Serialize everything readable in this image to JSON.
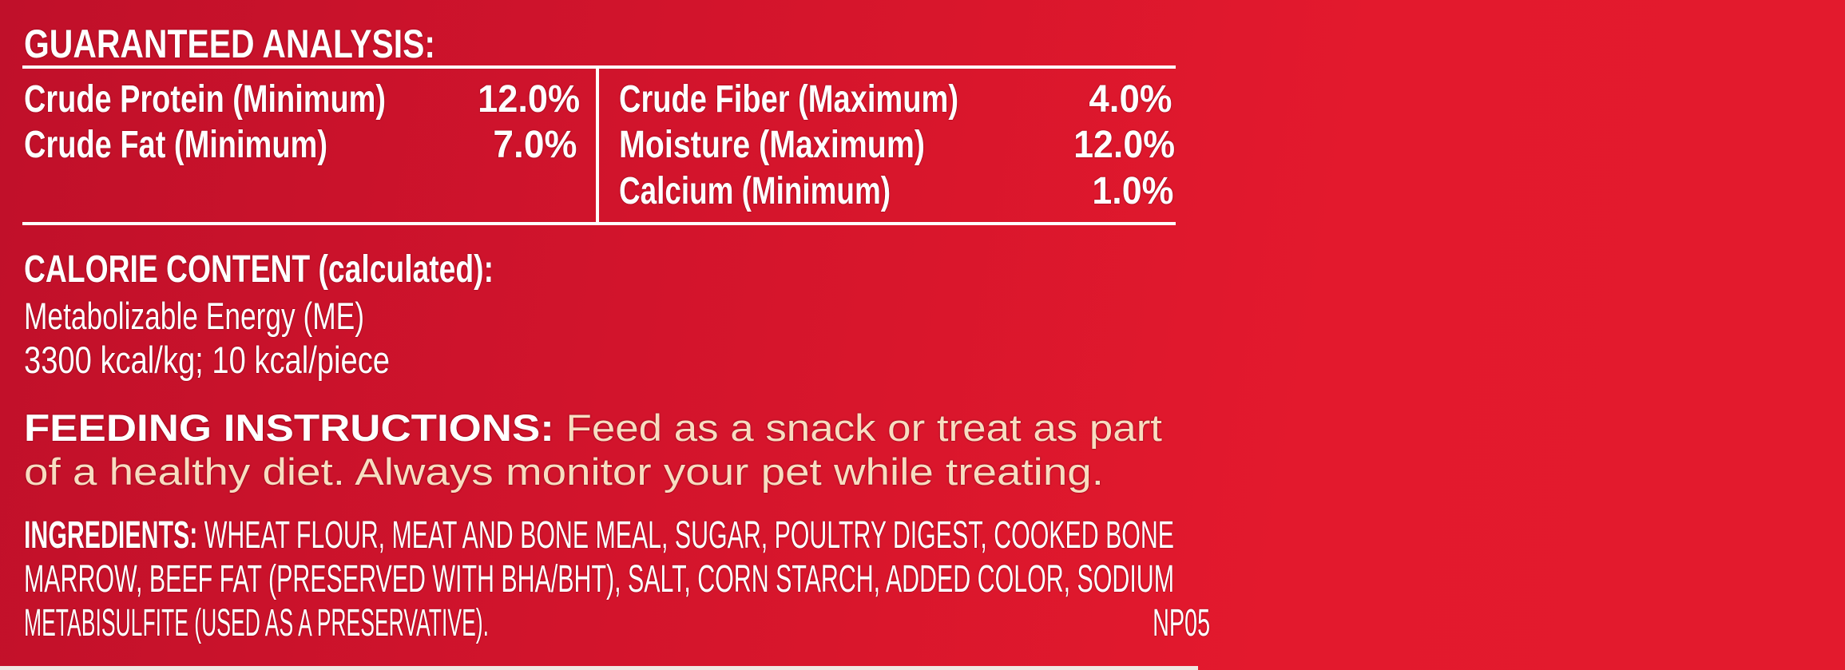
{
  "colors": {
    "background": "#d2142c",
    "text": "#ffffff",
    "feeding_text": "#f8dcc0"
  },
  "guaranteed_analysis": {
    "title": "GUARANTEED ANALYSIS:",
    "left": [
      {
        "label": "Crude Protein (Minimum)",
        "value": "12.0%"
      },
      {
        "label": "Crude Fat (Minimum)",
        "value": "7.0%"
      }
    ],
    "right": [
      {
        "label": "Crude Fiber (Maximum)",
        "value": "4.0%"
      },
      {
        "label": "Moisture (Maximum)",
        "value": "12.0%"
      },
      {
        "label": "Calcium (Minimum)",
        "value": "1.0%"
      }
    ]
  },
  "calorie": {
    "title": "CALORIE CONTENT (calculated):",
    "line1": "Metabolizable Energy (ME)",
    "line2": "3300 kcal/kg; 10 kcal/piece"
  },
  "feeding": {
    "label": "FEEDING INSTRUCTIONS:",
    "line1": "Feed as a snack or treat as part",
    "line2": "of a healthy diet. Always monitor your pet while treating."
  },
  "ingredients": {
    "label": "INGREDIENTS:",
    "line1": "WHEAT FLOUR, MEAT AND BONE MEAL, SUGAR, POULTRY DIGEST, COOKED BONE",
    "line2": "MARROW, BEEF FAT (PRESERVED WITH BHA/BHT), SALT, CORN STARCH, ADDED COLOR, SODIUM",
    "line3": "METABISULFITE (USED AS A PRESERVATIVE).",
    "code": "NP05"
  }
}
